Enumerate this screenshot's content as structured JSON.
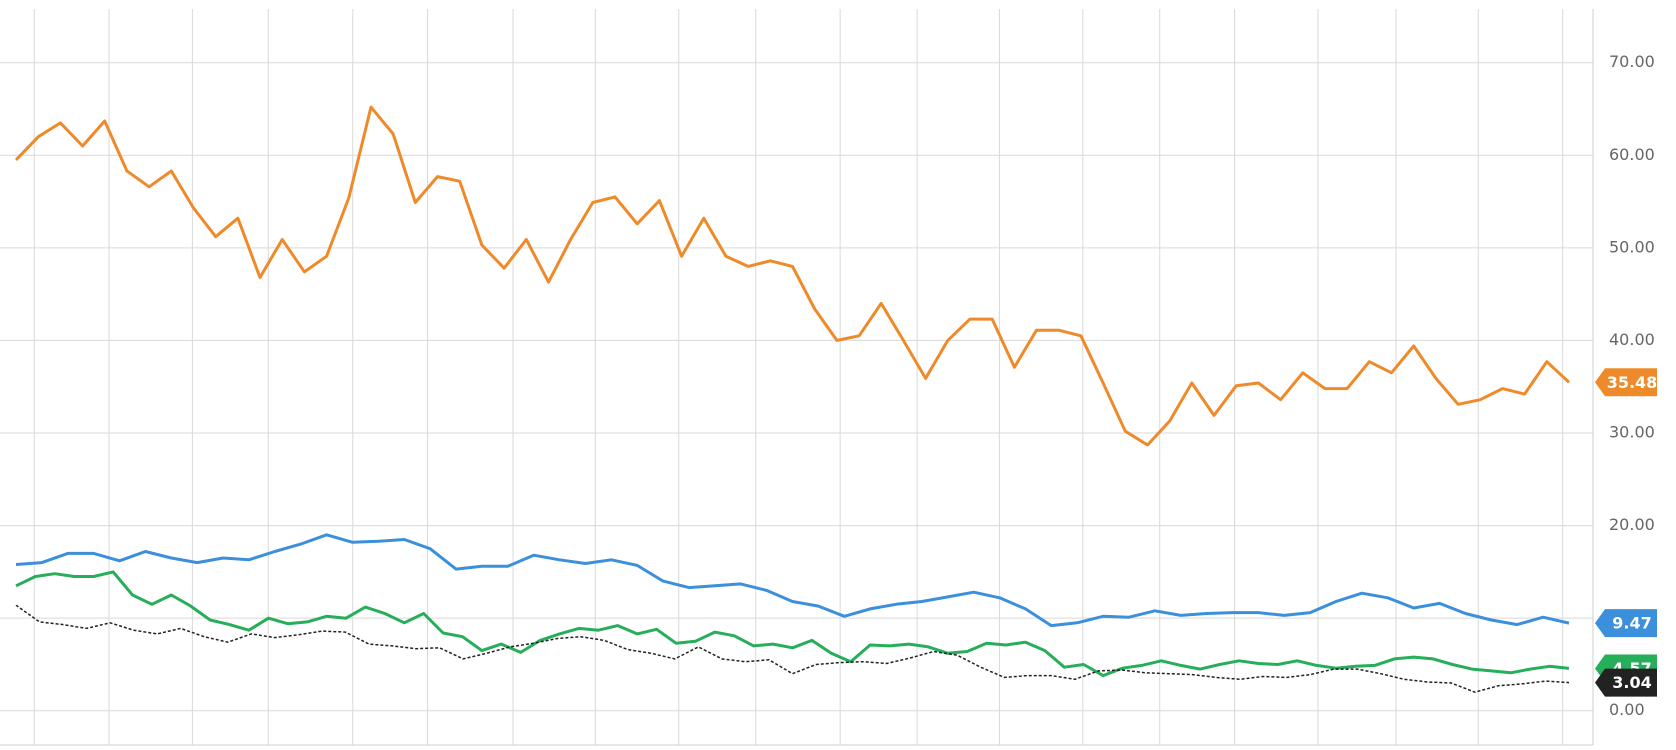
{
  "chart_data": {
    "type": "line",
    "ylim": [
      -3.7,
      75.8
    ],
    "yticks": [
      {
        "value": 0,
        "label": "0.00"
      },
      {
        "value": 10,
        "label": "10.00"
      },
      {
        "value": 20,
        "label": "20.00"
      },
      {
        "value": 30,
        "label": "30.00"
      },
      {
        "value": 40,
        "label": "40.00"
      },
      {
        "value": 50,
        "label": "50.00"
      },
      {
        "value": 60,
        "label": "60.00"
      },
      {
        "value": 70,
        "label": "70.00"
      }
    ],
    "grid": true,
    "series": [
      {
        "color": "#ef8a2a",
        "values": [
          59.5,
          62,
          63.5,
          61,
          63.7,
          58.3,
          56.6,
          58.3,
          54.3,
          51.2,
          53.2,
          46.8,
          50.9,
          47.4,
          49.1,
          55.4,
          65.2,
          62.3,
          54.9,
          57.7,
          57.2,
          50.3,
          47.8,
          50.9,
          46.3,
          50.9,
          54.9,
          55.5,
          52.6,
          55.1,
          49.1,
          53.2,
          49.1,
          48,
          48.6,
          48,
          43.4,
          40,
          40.5,
          44,
          40,
          35.9,
          40,
          42.3,
          42.3,
          37.1,
          41.1,
          41.1,
          40.5,
          35.4,
          30.2,
          28.7,
          31.3,
          35.4,
          31.9,
          35.1,
          35.4,
          33.6,
          36.5,
          34.8,
          34.8,
          37.7,
          36.5,
          39.4,
          35.9,
          33.1,
          33.6,
          34.8,
          34.2,
          37.7,
          35.48
        ]
      },
      {
        "color": "#3b8fdb",
        "values": [
          15.8,
          16,
          17,
          17,
          16.2,
          17.2,
          16.5,
          16,
          16.5,
          16.3,
          17.2,
          18,
          19,
          18.2,
          18.3,
          18.5,
          17.5,
          15.3,
          15.6,
          15.6,
          16.8,
          16.3,
          15.9,
          16.3,
          15.7,
          14,
          13.3,
          13.5,
          13.7,
          13,
          11.8,
          11.3,
          10.2,
          11,
          11.5,
          11.8,
          12.3,
          12.8,
          12.2,
          11,
          9.2,
          9.5,
          10.2,
          10.1,
          10.8,
          10.3,
          10.5,
          10.6,
          10.6,
          10.3,
          10.6,
          11.8,
          12.7,
          12.2,
          11.1,
          11.6,
          10.5,
          9.8,
          9.3,
          10.1,
          9.47
        ]
      },
      {
        "color": "#27ae5a",
        "values": [
          13.5,
          14.5,
          14.8,
          14.5,
          14.5,
          15,
          12.5,
          11.5,
          12.5,
          11.3,
          9.8,
          9.3,
          8.7,
          10,
          9.4,
          9.6,
          10.2,
          10,
          11.2,
          10.5,
          9.5,
          10.5,
          8.4,
          8,
          6.5,
          7.2,
          6.3,
          7.6,
          8.3,
          8.9,
          8.7,
          9.2,
          8.3,
          8.8,
          7.3,
          7.5,
          8.5,
          8.1,
          7,
          7.2,
          6.8,
          7.6,
          6.2,
          5.3,
          7.1,
          7,
          7.2,
          6.9,
          6.2,
          6.4,
          7.3,
          7.1,
          7.4,
          6.5,
          4.7,
          5,
          3.8,
          4.6,
          4.9,
          5.4,
          4.9,
          4.5,
          5,
          5.4,
          5.1,
          5,
          5.4,
          4.9,
          4.6,
          4.8,
          4.9,
          5.6,
          5.8,
          5.6,
          5,
          4.5,
          4.3,
          4.1,
          4.5,
          4.8,
          4.57
        ]
      },
      {
        "color": "#222222",
        "dashed": true,
        "values": [
          11.4,
          9.6,
          9.3,
          8.9,
          9.5,
          8.7,
          8.3,
          8.9,
          8,
          7.4,
          8.3,
          7.9,
          8.2,
          8.6,
          8.5,
          7.2,
          7,
          6.7,
          6.8,
          5.6,
          6.2,
          6.9,
          7.3,
          7.8,
          8,
          7.6,
          6.6,
          6.2,
          5.6,
          6.9,
          5.6,
          5.3,
          5.5,
          4,
          5,
          5.2,
          5.3,
          5.1,
          5.7,
          6.4,
          6,
          4.7,
          3.6,
          3.8,
          3.8,
          3.4,
          4.3,
          4.4,
          4.1,
          4,
          3.9,
          3.6,
          3.4,
          3.7,
          3.6,
          3.9,
          4.5,
          4.5,
          4,
          3.4,
          3.1,
          3,
          2,
          2.7,
          2.9,
          3.2,
          3.04
        ]
      }
    ]
  }
}
